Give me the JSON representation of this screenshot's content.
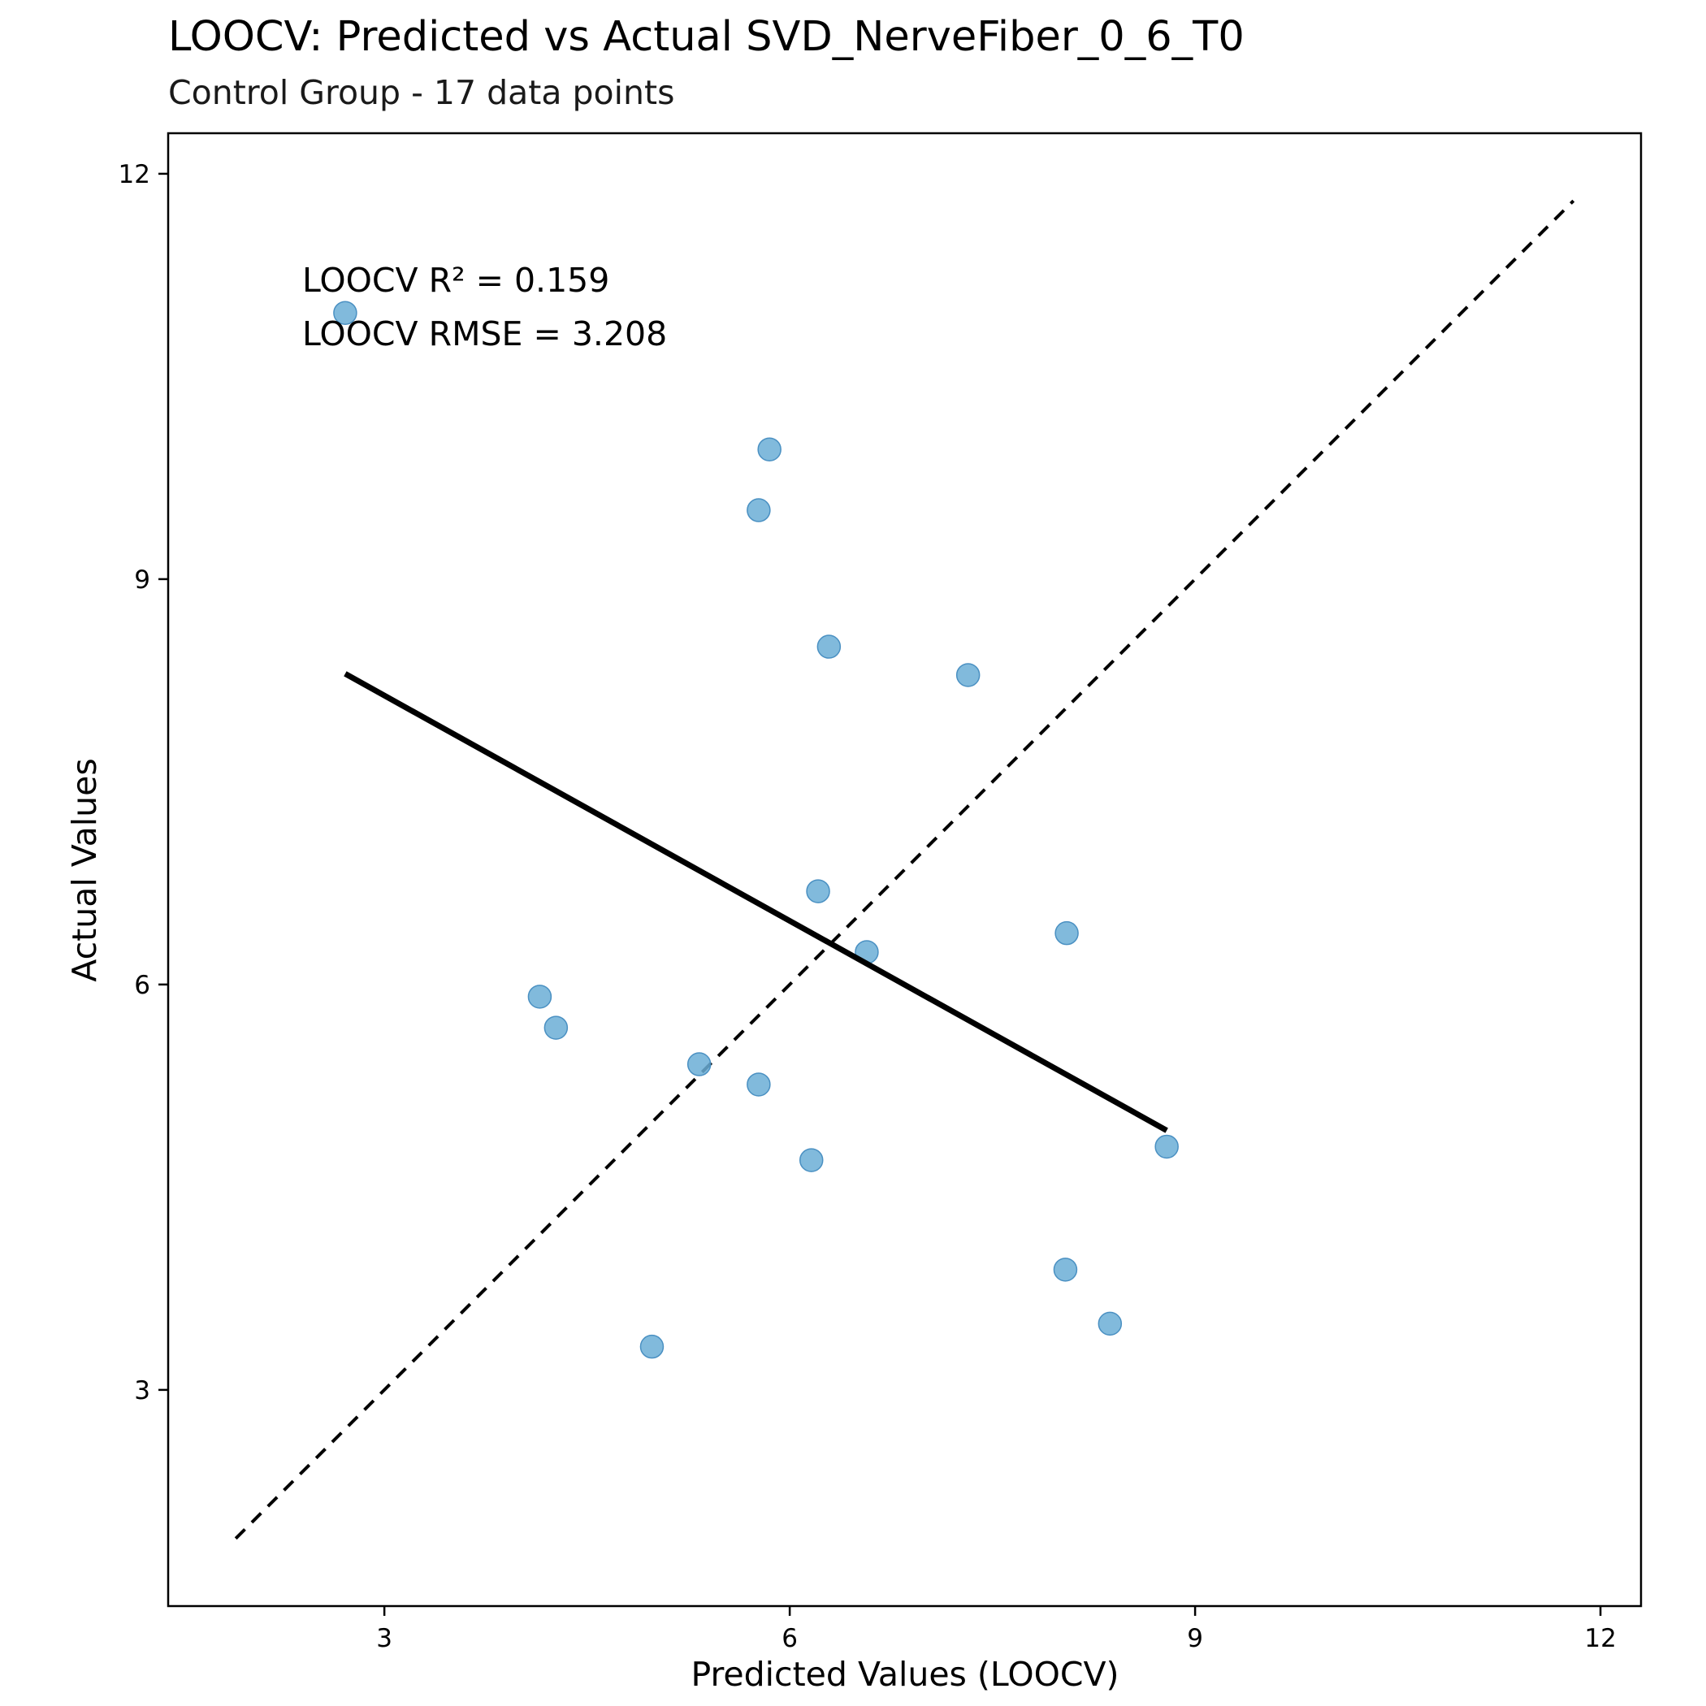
{
  "chart_data": {
    "type": "scatter",
    "title": "LOOCV: Predicted vs Actual SVD_NerveFiber_0_6_T0",
    "subtitle": "Control Group - 17 data points",
    "xlabel": "Predicted Values (LOOCV)",
    "ylabel": "Actual Values",
    "xlim": [
      1.4,
      12.3
    ],
    "ylim": [
      1.4,
      12.3
    ],
    "xticks": [
      3,
      6,
      9,
      12
    ],
    "yticks": [
      3,
      6,
      9,
      12
    ],
    "grid": false,
    "point_color": "#6baed6",
    "points": [
      {
        "x": 2.71,
        "y": 10.97
      },
      {
        "x": 5.85,
        "y": 9.96
      },
      {
        "x": 5.77,
        "y": 9.51
      },
      {
        "x": 6.29,
        "y": 8.5
      },
      {
        "x": 7.32,
        "y": 8.29
      },
      {
        "x": 6.21,
        "y": 6.69
      },
      {
        "x": 8.05,
        "y": 6.38
      },
      {
        "x": 6.57,
        "y": 6.24
      },
      {
        "x": 4.15,
        "y": 5.91
      },
      {
        "x": 4.27,
        "y": 5.68
      },
      {
        "x": 5.33,
        "y": 5.41
      },
      {
        "x": 5.77,
        "y": 5.26
      },
      {
        "x": 6.16,
        "y": 4.7
      },
      {
        "x": 8.79,
        "y": 4.8
      },
      {
        "x": 8.04,
        "y": 3.89
      },
      {
        "x": 8.37,
        "y": 3.49
      },
      {
        "x": 4.98,
        "y": 3.32
      }
    ],
    "fit_line": {
      "x": [
        2.71,
        8.79
      ],
      "y": [
        8.3,
        4.92
      ],
      "color": "#000000"
    },
    "identity_line": {
      "x": [
        1.9,
        11.8
      ],
      "y": [
        1.9,
        11.8
      ],
      "style": "dashed",
      "color": "#000000"
    },
    "annotations": [
      "LOOCV R² = 0.159",
      "LOOCV RMSE = 3.208"
    ]
  }
}
